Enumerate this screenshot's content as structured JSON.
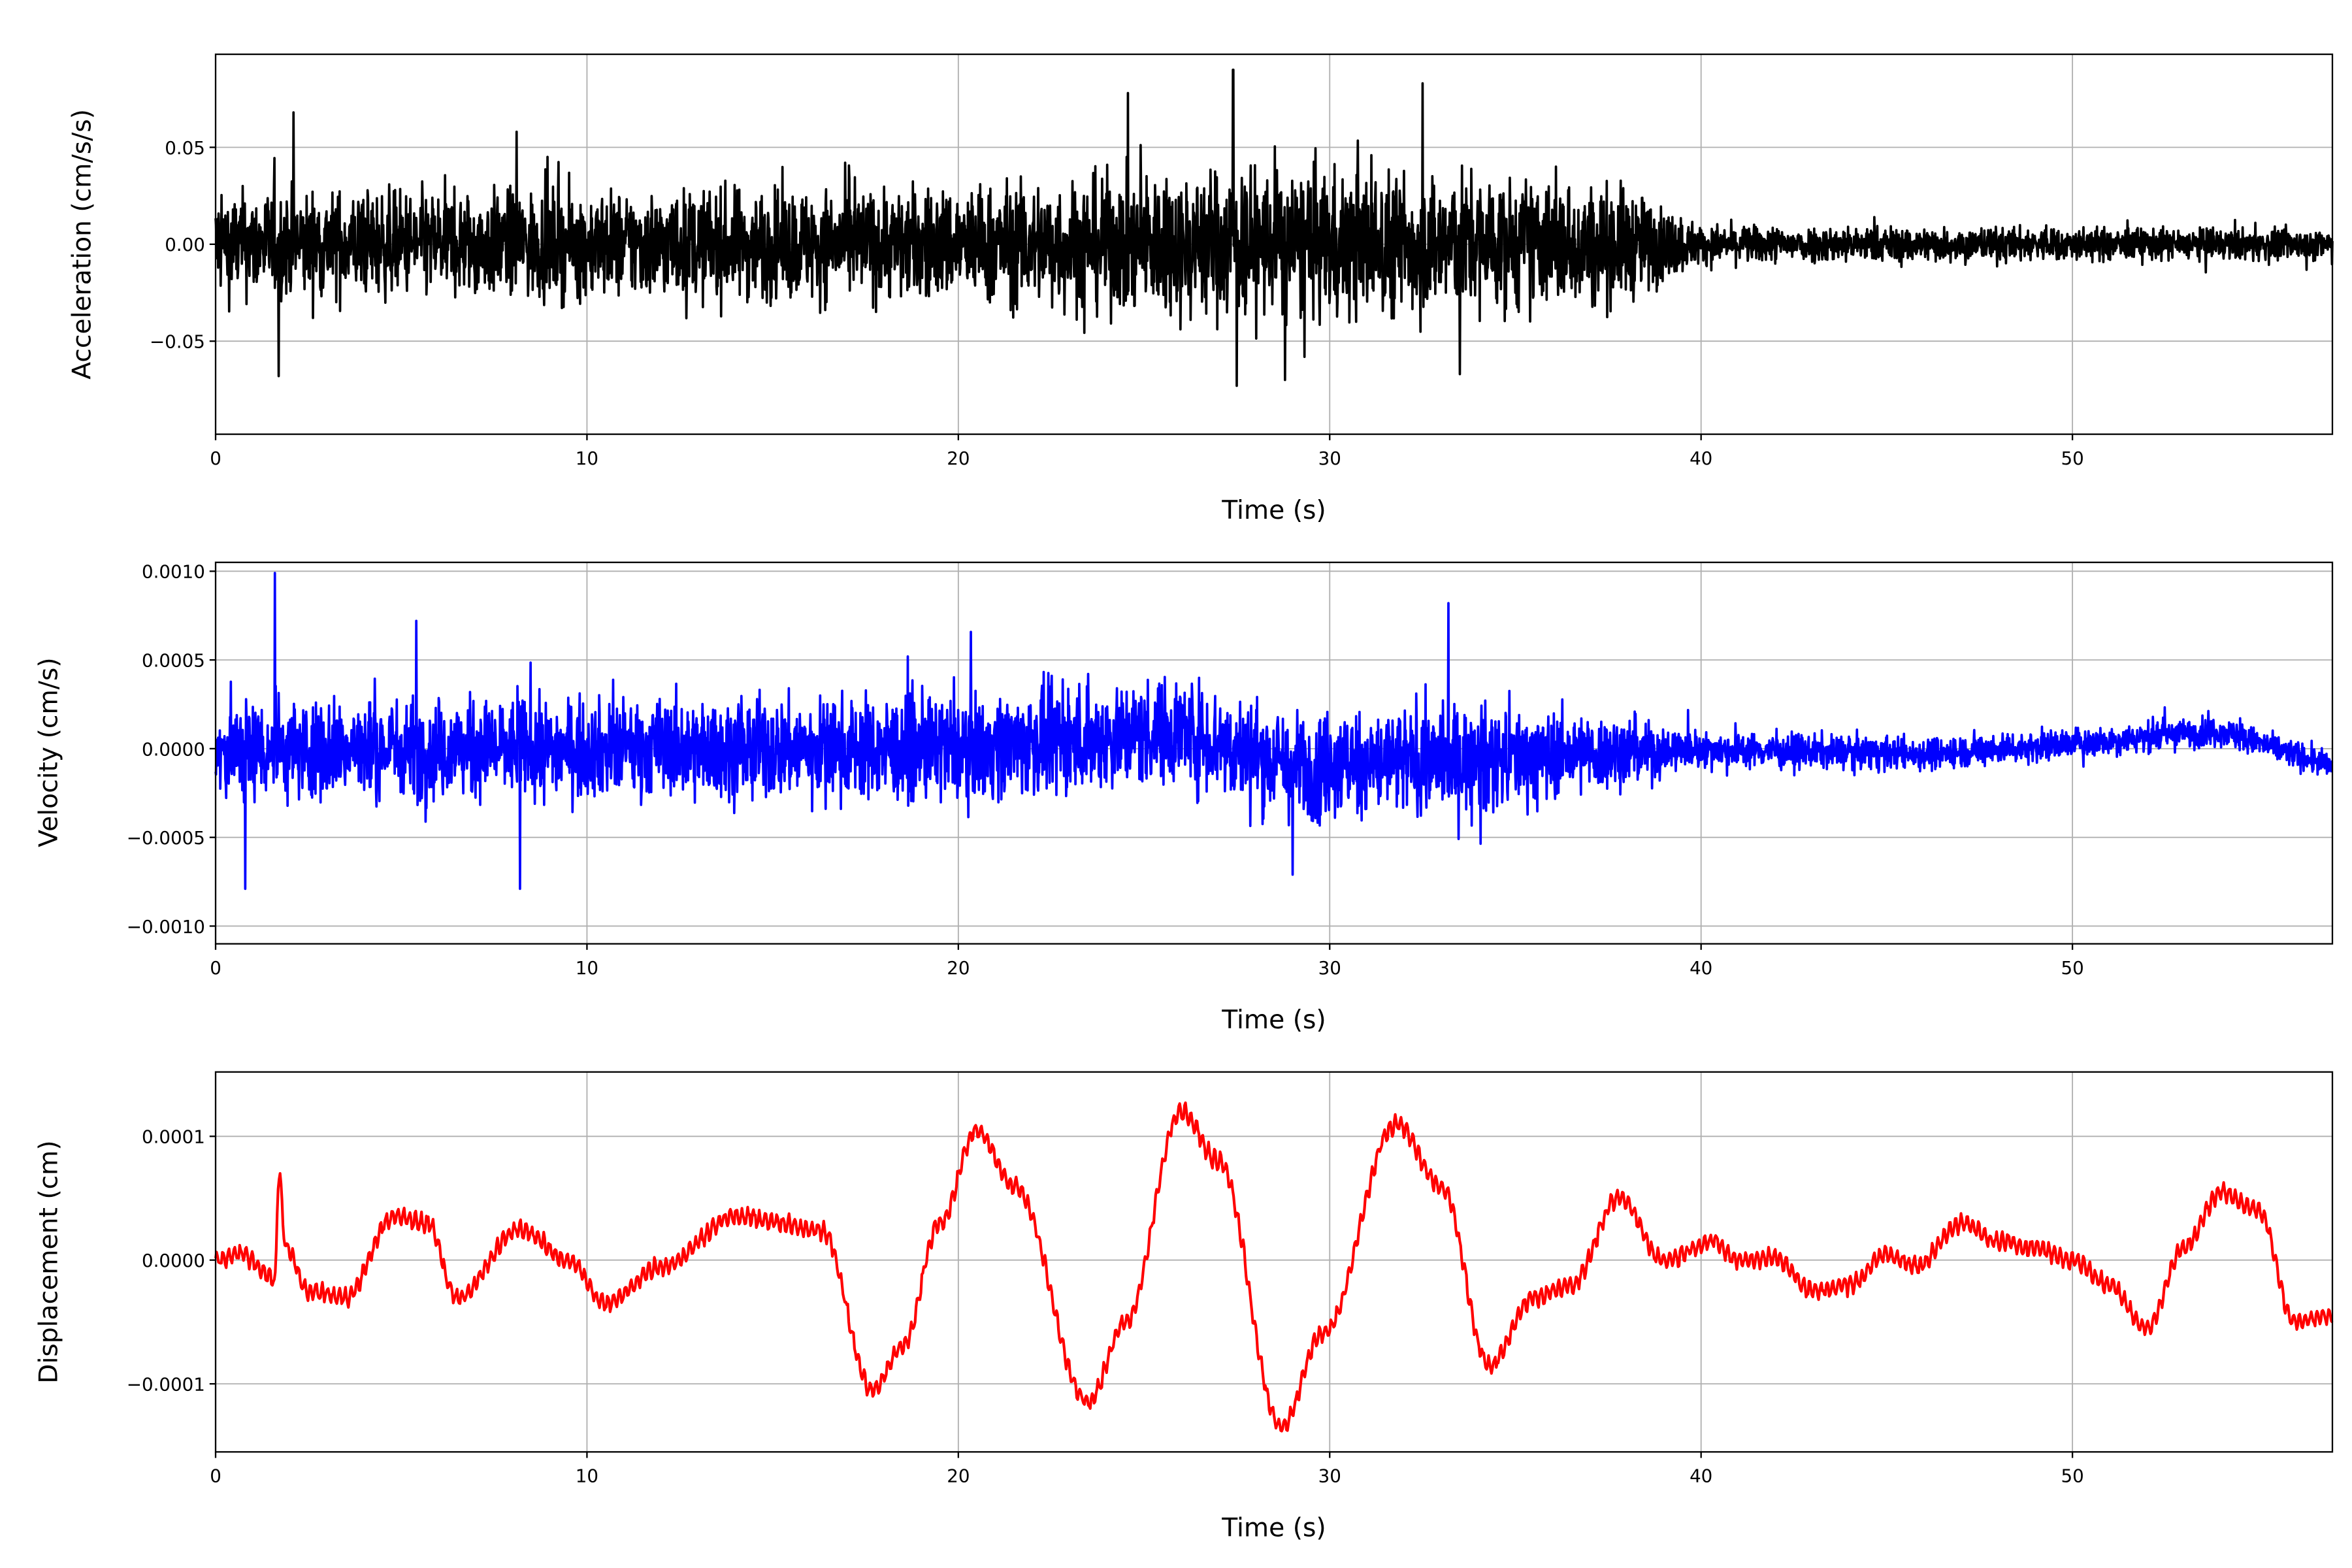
{
  "chart_data": [
    {
      "type": "line",
      "name": "acceleration",
      "xlabel": "Time (s)",
      "ylabel": "Acceleration (cm/s/s)",
      "xlim": [
        0,
        57
      ],
      "ylim": [
        -0.098,
        0.098
      ],
      "xticks": [
        0,
        10,
        20,
        30,
        40,
        50
      ],
      "xtick_labels": [
        "0",
        "10",
        "20",
        "30",
        "40",
        "50"
      ],
      "yticks": [
        -0.05,
        0,
        0.05
      ],
      "ytick_labels": [
        "−0.05",
        "0.00",
        "0.05"
      ],
      "grid": true,
      "color": "#000000",
      "description_of_series": "noisy signal; amplitude envelope given as [time, typical peak amplitude]",
      "envelope": [
        [
          0,
          0.028
        ],
        [
          10,
          0.028
        ],
        [
          20,
          0.03
        ],
        [
          27,
          0.04
        ],
        [
          33,
          0.038
        ],
        [
          38,
          0.03
        ],
        [
          40,
          0.01
        ],
        [
          57,
          0.008
        ]
      ],
      "peaks": [
        [
          2.1,
          0.068
        ],
        [
          1.7,
          -0.068
        ],
        [
          8.1,
          0.058
        ],
        [
          27.4,
          0.09
        ],
        [
          27.5,
          -0.073
        ],
        [
          32.5,
          0.083
        ],
        [
          28.8,
          -0.07
        ],
        [
          33.5,
          -0.067
        ]
      ]
    },
    {
      "type": "line",
      "name": "velocity",
      "xlabel": "Time (s)",
      "ylabel": "Velocity (cm/s)",
      "xlim": [
        0,
        57
      ],
      "ylim": [
        -0.0011,
        0.00105
      ],
      "xticks": [
        0,
        10,
        20,
        30,
        40,
        50
      ],
      "xtick_labels": [
        "0",
        "10",
        "20",
        "30",
        "40",
        "50"
      ],
      "yticks": [
        -0.001,
        -0.0005,
        0,
        0.0005,
        0.001
      ],
      "ytick_labels": [
        "−0.0010",
        "−0.0005",
        "0.0000",
        "0.0005",
        "0.0010"
      ],
      "grid": true,
      "color": "#0000ff",
      "envelope": [
        [
          0,
          0.0003
        ],
        [
          10,
          0.00028
        ],
        [
          20,
          0.0003
        ],
        [
          30,
          0.00032
        ],
        [
          34,
          0.0003
        ],
        [
          38,
          0.0002
        ],
        [
          40,
          0.0001
        ],
        [
          57,
          8e-05
        ]
      ],
      "trend": [
        [
          0,
          0
        ],
        [
          20,
          0
        ],
        [
          26,
          0.0001
        ],
        [
          29,
          -0.0001
        ],
        [
          40,
          0
        ],
        [
          46,
          -3e-05
        ],
        [
          50,
          3e-05
        ],
        [
          54,
          0.0001
        ],
        [
          57,
          -0.0001
        ]
      ],
      "peaks": [
        [
          1.6,
          0.00099
        ],
        [
          0.8,
          -0.00079
        ],
        [
          5.4,
          0.00072
        ],
        [
          8.2,
          -0.00079
        ],
        [
          33.2,
          0.00082
        ],
        [
          29,
          -0.00071
        ]
      ]
    },
    {
      "type": "line",
      "name": "displacement",
      "xlabel": "Time (s)",
      "ylabel": "Displacement (cm)",
      "xlim": [
        0,
        57
      ],
      "ylim": [
        -0.000155,
        0.000152
      ],
      "xticks": [
        0,
        10,
        20,
        30,
        40,
        50
      ],
      "xtick_labels": [
        "0",
        "10",
        "20",
        "30",
        "40",
        "50"
      ],
      "yticks": [
        -0.0001,
        0,
        0.0001
      ],
      "ytick_labels": [
        "−0.0001",
        "0.0000",
        "0.0001"
      ],
      "grid": true,
      "color": "#ff0000",
      "x": [
        0,
        0.7,
        1.6,
        1.7,
        1.9,
        2.5,
        3.5,
        4.8,
        5.7,
        6.5,
        8.2,
        9.5,
        10.5,
        12,
        14,
        16.3,
        17.7,
        18.5,
        19.5,
        20.5,
        21.5,
        23.5,
        24.5,
        26,
        27,
        28.7,
        29.8,
        31.8,
        33,
        34.3,
        35.5,
        36.5,
        37.8,
        39,
        40.3,
        41,
        42,
        43,
        44,
        45,
        45.8,
        47,
        48,
        49,
        50,
        51,
        52,
        53,
        54,
        55,
        56,
        57
      ],
      "y": [
        0,
        5e-06,
        -1.5e-05,
        7e-05,
        1e-05,
        -2.5e-05,
        -3e-05,
        3.5e-05,
        3e-05,
        -3e-05,
        2.5e-05,
        0,
        -3.5e-05,
        -5e-06,
        3.5e-05,
        2.5e-05,
        -0.000105,
        -7e-05,
        3e-05,
        0.000105,
        6e-05,
        -0.000115,
        -5e-05,
        0.00012,
        8e-05,
        -0.000135,
        -6e-05,
        0.00011,
        6e-05,
        -8.5e-05,
        -3e-05,
        -2e-05,
        5e-05,
        0,
        1.5e-05,
        0,
        2e-06,
        -2.5e-05,
        -2e-05,
        5e-06,
        -5e-06,
        3e-05,
        1.5e-05,
        1e-05,
        0,
        -2e-05,
        -5.5e-05,
        1e-05,
        5.5e-05,
        4e-05,
        -5e-05,
        -4.5e-05
      ]
    }
  ]
}
